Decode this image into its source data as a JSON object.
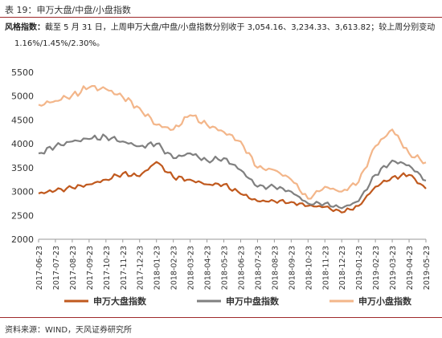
{
  "header": {
    "title": "表 19：申万大盘/中盘/小盘指数"
  },
  "description": {
    "label": "风格指数：",
    "line1": "截至 5 月 31 日，上周申万大盘/中盘/小盘指数分别收于 3,054.16、3,234.33、3,613.82；较上周分别变动",
    "line2": "1.16%/1.45%/2.30%。"
  },
  "source": {
    "text": "资料来源：WIND，天风证券研究所"
  },
  "chart_data": {
    "type": "line",
    "title": "",
    "xlabel": "",
    "ylabel": "",
    "ylim": [
      2000,
      5500
    ],
    "yticks": [
      2000,
      2500,
      3000,
      3500,
      4000,
      4500,
      5000,
      5500
    ],
    "grid": false,
    "legend_position": "bottom",
    "categories": [
      "2017-06-23",
      "2017-07-23",
      "2017-08-23",
      "2017-09-23",
      "2017-10-23",
      "2017-11-23",
      "2017-12-23",
      "2018-01-23",
      "2018-02-23",
      "2018-03-23",
      "2018-04-23",
      "2018-05-23",
      "2018-06-23",
      "2018-07-23",
      "2018-08-23",
      "2018-09-23",
      "2018-10-23",
      "2018-11-23",
      "2018-12-23",
      "2019-01-23",
      "2019-02-23",
      "2019-03-23",
      "2019-04-23",
      "2019-05-23"
    ],
    "series": [
      {
        "name": "申万大盘指数",
        "color": "#c0591e",
        "values": [
          2960,
          3020,
          3080,
          3150,
          3250,
          3380,
          3320,
          3620,
          3300,
          3250,
          3150,
          3150,
          2950,
          2800,
          2800,
          2780,
          2700,
          2680,
          2560,
          2700,
          3100,
          3300,
          3350,
          3060
        ]
      },
      {
        "name": "申万中盘指数",
        "color": "#808080",
        "values": [
          3800,
          3950,
          4050,
          4100,
          4150,
          4050,
          3950,
          4000,
          3700,
          3800,
          3650,
          3700,
          3450,
          3100,
          3100,
          3000,
          2750,
          2750,
          2650,
          2800,
          3350,
          3650,
          3550,
          3230
        ]
      },
      {
        "name": "申万小盘指数",
        "color": "#f3b68a",
        "values": [
          4820,
          4900,
          5020,
          5180,
          5150,
          4980,
          4750,
          4400,
          4300,
          4600,
          4400,
          4250,
          4050,
          3500,
          3450,
          3250,
          2850,
          3100,
          3000,
          3200,
          3950,
          4300,
          3800,
          3610
        ]
      }
    ]
  }
}
